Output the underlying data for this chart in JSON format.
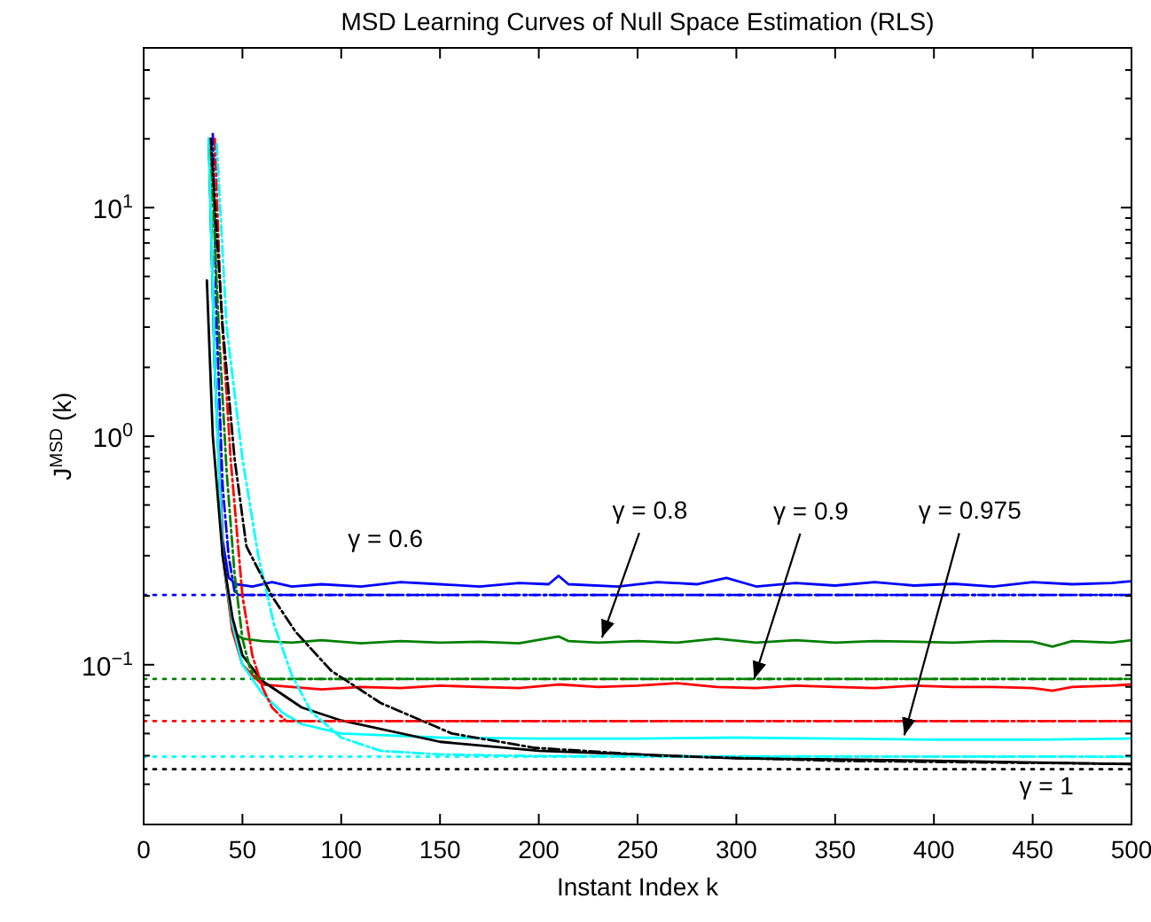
{
  "chart_data": {
    "type": "line",
    "title": "MSD Learning Curves of Null Space Estimation (RLS)",
    "xlabel": "Instant Index k",
    "ylabel": "J$^{MSD}$ (k)",
    "log": "y",
    "grid": false,
    "xlim": [
      0,
      500
    ],
    "xticks": [
      0,
      50,
      100,
      150,
      200,
      250,
      300,
      350,
      400,
      450,
      500
    ],
    "ylim": [
      0.02,
      50
    ],
    "yticks": [
      {
        "value": 0.02,
        "label": null
      },
      {
        "value": 0.03,
        "label": null
      },
      {
        "value": 0.04,
        "label": null
      },
      {
        "value": 0.05,
        "label": null
      },
      {
        "value": 0.06,
        "label": null
      },
      {
        "value": 0.07,
        "label": null
      },
      {
        "value": 0.08,
        "label": null
      },
      {
        "value": 0.09,
        "label": null
      },
      {
        "value": 0.1,
        "label": "10$^{−1}$"
      },
      {
        "value": 0.2,
        "label": null
      },
      {
        "value": 0.3,
        "label": null
      },
      {
        "value": 0.4,
        "label": null
      },
      {
        "value": 0.5,
        "label": null
      },
      {
        "value": 0.6,
        "label": null
      },
      {
        "value": 0.7,
        "label": null
      },
      {
        "value": 0.8,
        "label": null
      },
      {
        "value": 0.9,
        "label": null
      },
      {
        "value": 1,
        "label": "10$^{0}$"
      },
      {
        "value": 2,
        "label": null
      },
      {
        "value": 3,
        "label": null
      },
      {
        "value": 4,
        "label": null
      },
      {
        "value": 5,
        "label": null
      },
      {
        "value": 6,
        "label": null
      },
      {
        "value": 7,
        "label": null
      },
      {
        "value": 8,
        "label": null
      },
      {
        "value": 9,
        "label": null
      },
      {
        "value": 10,
        "label": "10$^{1}$"
      },
      {
        "value": 20,
        "label": null
      },
      {
        "value": 30,
        "label": null
      },
      {
        "value": 40,
        "label": null
      }
    ],
    "series": [
      {
        "color": "#0000ff",
        "line_style": "solid",
        "x": [
          33,
          36,
          40,
          43,
          47,
          55,
          65,
          75,
          90,
          110,
          130,
          150,
          170,
          190,
          205,
          210,
          215,
          240,
          260,
          280,
          295,
          310,
          330,
          350,
          370,
          390,
          410,
          430,
          450,
          470,
          490,
          500
        ],
        "values": [
          20,
          2,
          0.35,
          0.24,
          0.225,
          0.22,
          0.23,
          0.22,
          0.225,
          0.22,
          0.23,
          0.225,
          0.22,
          0.228,
          0.225,
          0.245,
          0.225,
          0.22,
          0.23,
          0.225,
          0.24,
          0.22,
          0.228,
          0.222,
          0.23,
          0.222,
          0.226,
          0.22,
          0.23,
          0.225,
          0.228,
          0.232
        ]
      },
      {
        "color": "#008000",
        "line_style": "solid",
        "x": [
          33,
          36,
          40,
          45,
          50,
          60,
          75,
          90,
          110,
          130,
          150,
          170,
          190,
          210,
          215,
          230,
          250,
          270,
          290,
          310,
          330,
          350,
          370,
          390,
          410,
          430,
          450,
          460,
          470,
          490,
          500
        ],
        "values": [
          20,
          2,
          0.3,
          0.14,
          0.13,
          0.127,
          0.125,
          0.128,
          0.124,
          0.127,
          0.125,
          0.126,
          0.124,
          0.133,
          0.127,
          0.125,
          0.127,
          0.125,
          0.13,
          0.125,
          0.128,
          0.125,
          0.127,
          0.126,
          0.125,
          0.127,
          0.126,
          0.12,
          0.127,
          0.125,
          0.128
        ]
      },
      {
        "color": "#ff0000",
        "line_style": "solid",
        "x": [
          38,
          40,
          45,
          50,
          55,
          60,
          75,
          90,
          110,
          130,
          150,
          170,
          190,
          210,
          230,
          250,
          270,
          290,
          310,
          330,
          350,
          370,
          390,
          410,
          430,
          450,
          460,
          470,
          490,
          500
        ],
        "values": [
          0.9,
          0.3,
          0.14,
          0.1,
          0.09,
          0.082,
          0.08,
          0.078,
          0.08,
          0.079,
          0.081,
          0.08,
          0.079,
          0.082,
          0.08,
          0.081,
          0.083,
          0.08,
          0.079,
          0.081,
          0.08,
          0.079,
          0.081,
          0.08,
          0.08,
          0.079,
          0.077,
          0.08,
          0.081,
          0.082
        ]
      },
      {
        "color": "#00ffff",
        "line_style": "solid",
        "x": [
          33,
          36,
          40,
          45,
          50,
          60,
          70,
          80,
          100,
          125,
          150,
          200,
          250,
          300,
          350,
          400,
          450,
          500
        ],
        "values": [
          20,
          2,
          0.3,
          0.15,
          0.1,
          0.075,
          0.062,
          0.055,
          0.05,
          0.049,
          0.048,
          0.0475,
          0.0475,
          0.048,
          0.0475,
          0.047,
          0.047,
          0.0475
        ]
      },
      {
        "color": "#000000",
        "line_style": "solid",
        "x": [
          32,
          35,
          40,
          45,
          50,
          60,
          80,
          100,
          150,
          200,
          300,
          400,
          500
        ],
        "values": [
          4.8,
          1,
          0.3,
          0.16,
          0.11,
          0.085,
          0.065,
          0.057,
          0.046,
          0.042,
          0.039,
          0.038,
          0.0367
        ]
      },
      {
        "color": "#0000ff",
        "line_style": "dashed",
        "x": [
          35,
          37,
          40,
          43,
          46,
          48,
          500
        ],
        "values": [
          21,
          3,
          0.6,
          0.3,
          0.21,
          0.202,
          0.202
        ]
      },
      {
        "color": "#008000",
        "line_style": "dashed",
        "x": [
          34,
          38,
          42,
          46,
          50,
          54,
          58,
          500
        ],
        "values": [
          18,
          3,
          0.7,
          0.25,
          0.13,
          0.095,
          0.0867,
          0.0867
        ]
      },
      {
        "color": "#ff0000",
        "line_style": "dashed",
        "x": [
          36,
          39,
          44,
          50,
          55,
          60,
          65,
          72,
          500
        ],
        "values": [
          20,
          4,
          0.8,
          0.2,
          0.11,
          0.08,
          0.065,
          0.0567,
          0.0567
        ]
      },
      {
        "color": "#00ffff",
        "line_style": "dashed",
        "x": [
          37,
          42,
          50,
          58,
          66,
          75,
          85,
          100,
          120,
          150,
          200,
          500
        ],
        "values": [
          19,
          3,
          0.8,
          0.3,
          0.15,
          0.09,
          0.062,
          0.048,
          0.042,
          0.0405,
          0.0398,
          0.0396
        ]
      },
      {
        "color": "#000000",
        "line_style": "dashed",
        "x": [
          34,
          40,
          46,
          52,
          65,
          77,
          95,
          120,
          156,
          198,
          260,
          350,
          500
        ],
        "values": [
          20,
          3,
          0.8,
          0.33,
          0.199,
          0.139,
          0.094,
          0.068,
          0.05,
          0.0433,
          0.04,
          0.038,
          0.0368
        ]
      }
    ],
    "ref_lines": [
      {
        "axis": "y",
        "value": 0.202,
        "color": "#0000ff",
        "line_style": "dotted"
      },
      {
        "axis": "y",
        "value": 0.0867,
        "color": "#008000",
        "line_style": "dotted"
      },
      {
        "axis": "y",
        "value": 0.0567,
        "color": "#ff0000",
        "line_style": "dotted"
      },
      {
        "axis": "y",
        "value": 0.0396,
        "color": "#00ffff",
        "line_style": "dotted"
      },
      {
        "axis": "y",
        "value": 0.0349,
        "color": "#000000",
        "line_style": "dotted"
      }
    ],
    "annotations": [
      {
        "text": "γ = 0.6",
        "x": 126,
        "y": 0.225
      },
      {
        "text": "γ = 0.8",
        "x": 232,
        "y": 0.127
      },
      {
        "text": "γ = 0.9",
        "x": 309,
        "y": 0.0836
      },
      {
        "text": "γ = 0.975",
        "x": 385,
        "y": 0.0474
      },
      {
        "text": "γ = 1",
        "x": 457,
        "y": 0.0367
      }
    ]
  }
}
